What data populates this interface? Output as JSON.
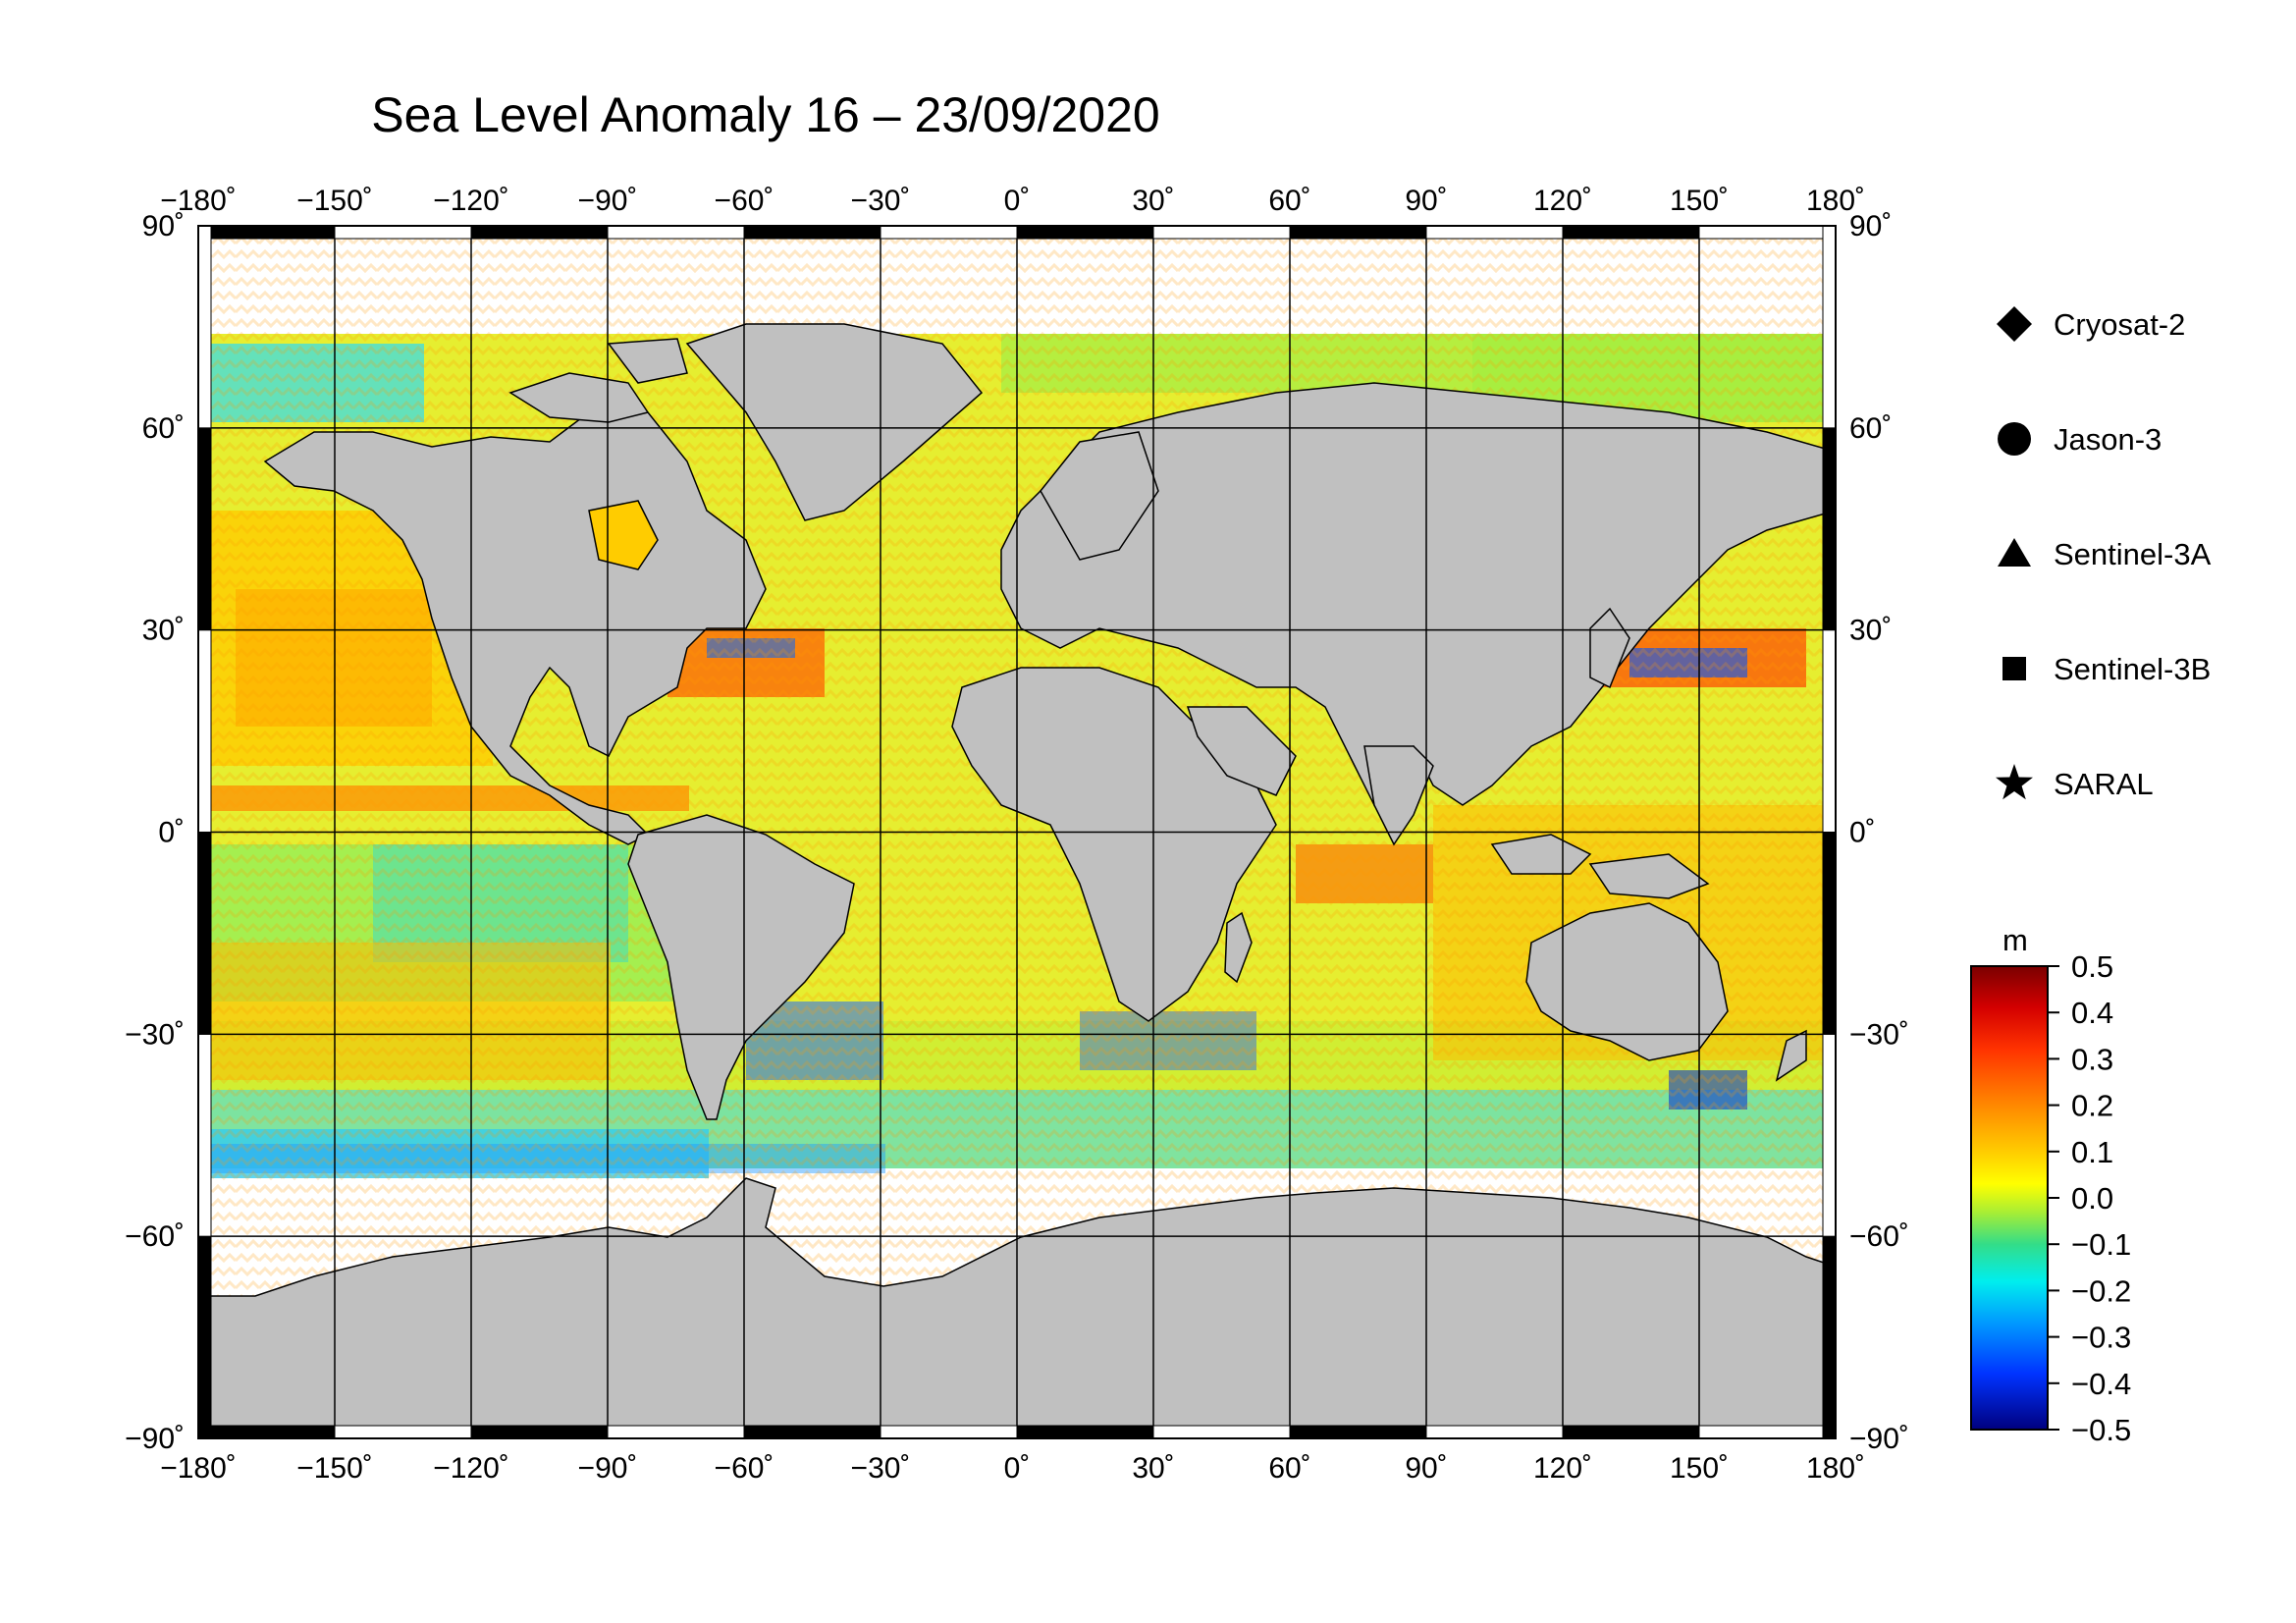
{
  "title": "Sea Level Anomaly 16 – 23/09/2020",
  "map": {
    "projection": "equirectangular",
    "lon_range": [
      -180,
      180
    ],
    "lat_range": [
      -90,
      90
    ],
    "lon_ticks": [
      -180,
      -150,
      -120,
      -90,
      -60,
      -30,
      0,
      30,
      60,
      90,
      120,
      150,
      180
    ],
    "lat_ticks": [
      -90,
      -60,
      -30,
      0,
      30,
      60,
      90
    ],
    "lon_tick_labels": [
      "−180˚",
      "−150˚",
      "−120˚",
      "−90˚",
      "−60˚",
      "−30˚",
      "0˚",
      "30˚",
      "60˚",
      "90˚",
      "120˚",
      "150˚",
      "180˚"
    ],
    "lat_tick_labels_left": [
      "−90˚",
      "−60˚",
      "−30˚",
      "0˚",
      "30˚",
      "60˚",
      "90˚"
    ],
    "lat_tick_labels_right": [
      "−90˚",
      "−60˚",
      "−30˚",
      "0˚",
      "30˚",
      "60˚",
      "90˚"
    ],
    "grid": true,
    "land_color": "#c0c0c0",
    "ice_color": "#ffffff"
  },
  "colorbar": {
    "unit": "m",
    "min": -0.5,
    "max": 0.5,
    "tick_labels": [
      "0.5",
      "0.4",
      "0.3",
      "0.2",
      "0.1",
      "0.0",
      "−0.1",
      "−0.2",
      "−0.3",
      "−0.4",
      "−0.5"
    ],
    "colors": [
      "#7a0000",
      "#d40000",
      "#ff3300",
      "#ff8800",
      "#ffcc00",
      "#ffff00",
      "#aaee33",
      "#33dd88",
      "#00eeee",
      "#0099ff",
      "#0033ff",
      "#00007f"
    ]
  },
  "legend": {
    "items": [
      {
        "label": "Cryosat-2",
        "marker": "diamond"
      },
      {
        "label": "Jason-3",
        "marker": "circle"
      },
      {
        "label": "Sentinel-3A",
        "marker": "triangle"
      },
      {
        "label": "Sentinel-3B",
        "marker": "square"
      },
      {
        "label": "SARAL",
        "marker": "star"
      }
    ]
  }
}
